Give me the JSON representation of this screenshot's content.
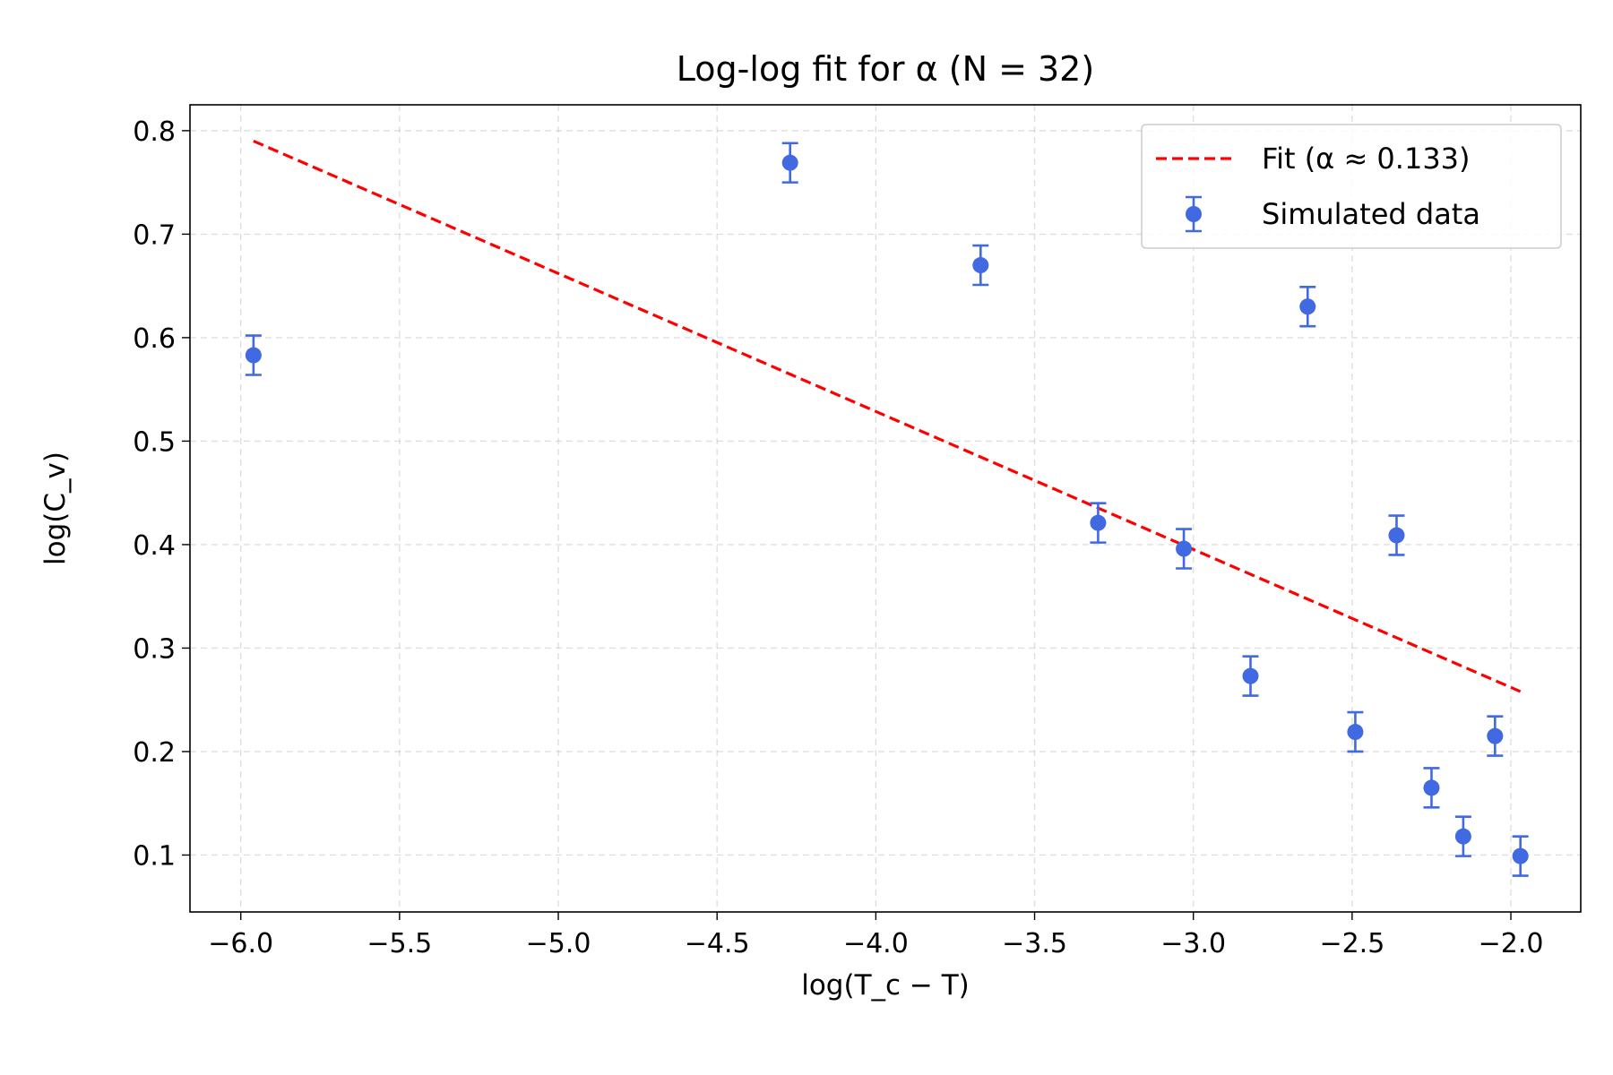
{
  "chart_data": {
    "type": "scatter",
    "title": "Log-log fit for α (N = 32)",
    "xlabel": "log(T_c − T)",
    "ylabel": "log(C_v)",
    "xlim": [
      -6.16,
      -1.78
    ],
    "ylim": [
      0.045,
      0.825
    ],
    "xticks": [
      -6.0,
      -5.5,
      -5.0,
      -4.5,
      -4.0,
      -3.5,
      -3.0,
      -2.5,
      -2.0
    ],
    "xtick_labels": [
      "−6.0",
      "−5.5",
      "−5.0",
      "−4.5",
      "−4.0",
      "−3.5",
      "−3.0",
      "−2.5",
      "−2.0"
    ],
    "yticks": [
      0.1,
      0.2,
      0.3,
      0.4,
      0.5,
      0.6,
      0.7,
      0.8
    ],
    "ytick_labels": [
      "0.1",
      "0.2",
      "0.3",
      "0.4",
      "0.5",
      "0.6",
      "0.7",
      "0.8"
    ],
    "grid": true,
    "legend_position": "top-right",
    "series": [
      {
        "name": "Fit (α ≈ 0.133)",
        "kind": "line",
        "style": "dashed",
        "color": "#ff0000",
        "x": [
          -5.96,
          -1.97
        ],
        "y": [
          0.79,
          0.258
        ]
      },
      {
        "name": "Simulated data",
        "kind": "errorbar",
        "color": "#4169e1",
        "x": [
          -5.96,
          -4.27,
          -3.67,
          -3.3,
          -3.03,
          -2.82,
          -2.64,
          -2.49,
          -2.36,
          -2.25,
          -2.15,
          -2.05,
          -1.97
        ],
        "y": [
          0.583,
          0.769,
          0.67,
          0.421,
          0.396,
          0.273,
          0.63,
          0.219,
          0.409,
          0.165,
          0.118,
          0.215,
          0.099
        ],
        "yerr": [
          0.019,
          0.019,
          0.019,
          0.019,
          0.019,
          0.019,
          0.019,
          0.019,
          0.019,
          0.019,
          0.019,
          0.019,
          0.019
        ]
      }
    ]
  }
}
